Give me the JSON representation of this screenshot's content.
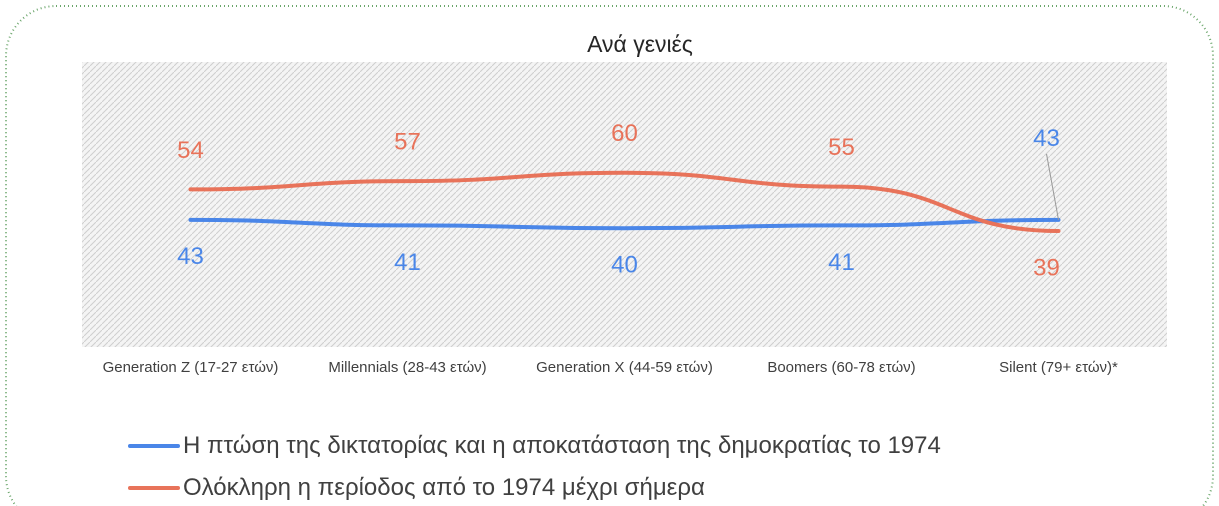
{
  "chart_data": {
    "type": "line",
    "title": "Ανά γενιές",
    "categories": [
      "Generation Z (17-27 ετών)",
      "Millennials (28-43 ετών)",
      "Generation X (44-59 ετών)",
      "Boomers (60-78 ετών)",
      "Silent (79+ ετών)*"
    ],
    "series": [
      {
        "name": "Η πτώση της δικτατορίας και η αποκατάσταση της δημοκρατίας το 1974",
        "color": "#4a86e8",
        "values": [
          43,
          41,
          40,
          41,
          43
        ]
      },
      {
        "name": "Ολόκληρη η περίοδος από το 1974 μέχρι σήμερα",
        "color": "#e8735a",
        "values": [
          54,
          57,
          60,
          55,
          39
        ]
      }
    ],
    "ylim": [
      0,
      100
    ]
  }
}
